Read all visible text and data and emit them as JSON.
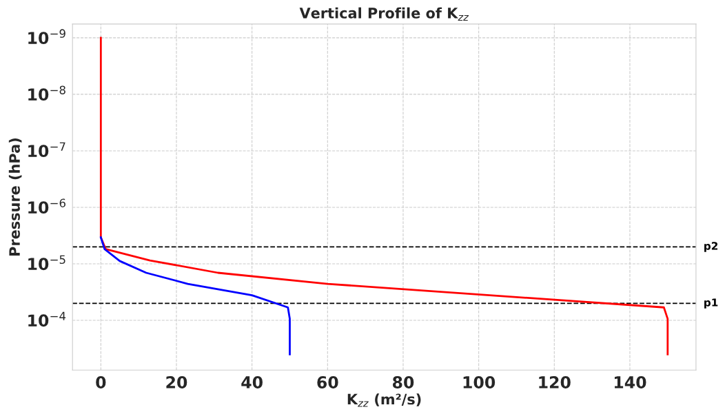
{
  "chart_data": {
    "type": "line",
    "title": "Vertical Profile of K$_{zz}$",
    "xlabel": "K$_{zz}$ (m²/s)",
    "ylabel": "Pressure (hPa)",
    "log": "y",
    "grid": true,
    "line_style": "solid",
    "marker": "none",
    "xlim": [
      -7.5,
      157.5
    ],
    "xticks": [
      0,
      20,
      40,
      60,
      80,
      100,
      120,
      140
    ],
    "ylim": [
      0.00076,
      5.7e-10
    ],
    "yticks": [
      {
        "value": 1e-09,
        "label": "10$^{−9}$"
      },
      {
        "value": 1e-08,
        "label": "10$^{−8}$"
      },
      {
        "value": 1e-07,
        "label": "10$^{−7}$"
      },
      {
        "value": 1e-06,
        "label": "10$^{−6}$"
      },
      {
        "value": 1e-05,
        "label": "10$^{−5}$"
      },
      {
        "value": 0.0001,
        "label": "10$^{−4}$"
      }
    ],
    "series": [
      {
        "color": "#ff0000",
        "x": [
          0,
          0,
          1.3,
          13,
          31,
          60,
          149,
          150,
          150
        ],
        "values": [
          1e-09,
          3.4e-06,
          5.5e-06,
          8.7e-06,
          1.44e-05,
          2.26e-05,
          5.9e-05,
          9.4e-05,
          0.0004
        ]
      },
      {
        "color": "#0000ff",
        "x": [
          0,
          1,
          5,
          12,
          23,
          40,
          49.5,
          50,
          50
        ],
        "values": [
          3.4e-06,
          5.5e-06,
          8.9e-06,
          1.44e-05,
          2.26e-05,
          3.6e-05,
          5.9e-05,
          9.4e-05,
          0.0004
        ]
      }
    ],
    "ref_lines": [
      {
        "axis": "y",
        "value": 5e-06,
        "label": "p2",
        "color": "#000000",
        "line_style": "dashed"
      },
      {
        "axis": "y",
        "value": 5e-05,
        "label": "p1",
        "color": "#000000",
        "line_style": "dashed"
      }
    ]
  }
}
